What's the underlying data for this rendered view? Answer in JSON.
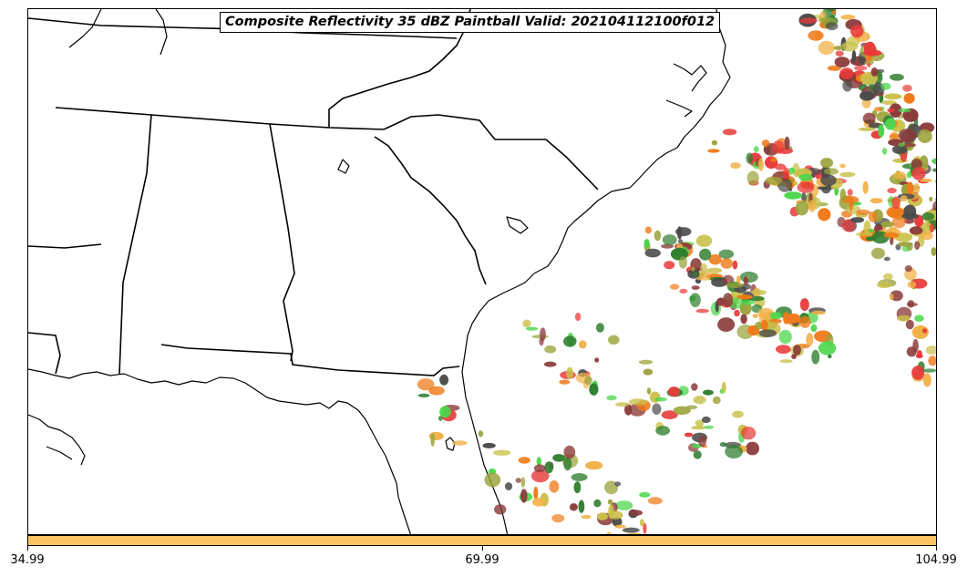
{
  "title": "Composite Reflectivity 35 dBZ Paintball Valid: 202104112100f012",
  "colorbar": {
    "color": "#FDC466",
    "ticks": [
      "34.99",
      "69.99",
      "104.99"
    ]
  },
  "paintball_colors": [
    "#e83a3a",
    "#ef7a1a",
    "#f2b24a",
    "#4cd64c",
    "#2e7d2e",
    "#9aa33a",
    "#8b3a3a",
    "#4a4a4a",
    "#c9c04a"
  ],
  "map_layers": [
    "state-borders",
    "coastline",
    "reflectivity-paintball"
  ]
}
